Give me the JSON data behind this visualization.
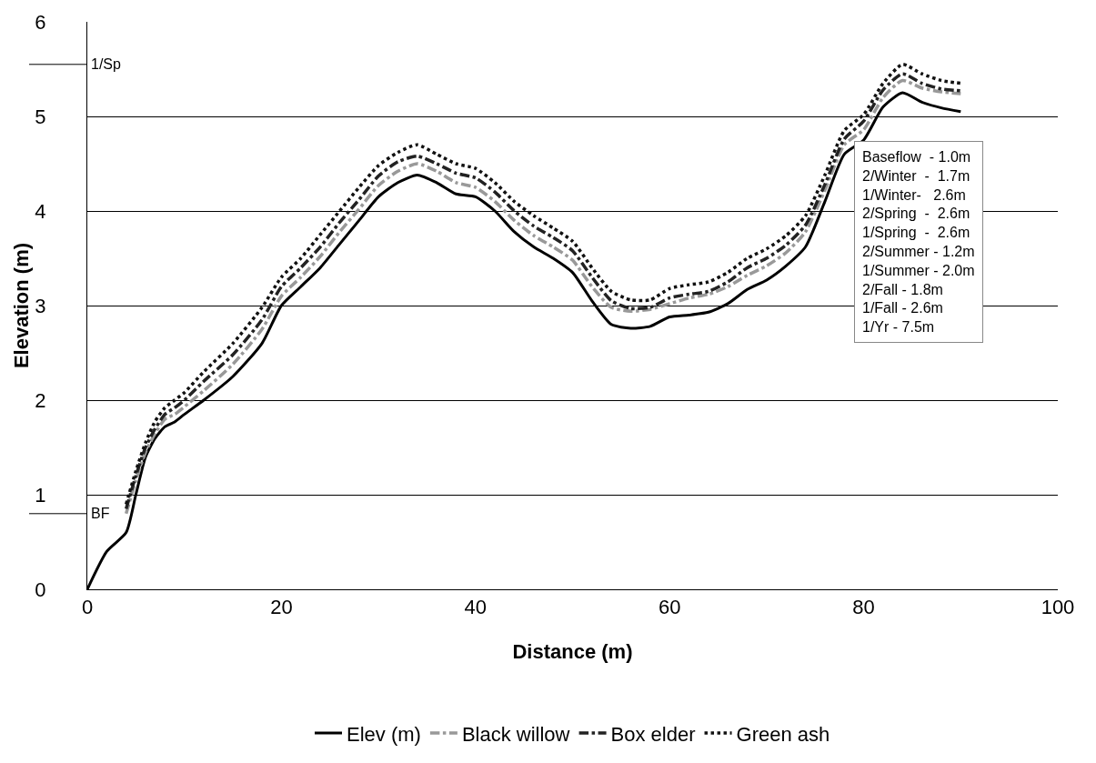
{
  "chart_data": {
    "type": "line",
    "xlabel": "Distance (m)",
    "ylabel": "Elevation (m)",
    "xlim": [
      0,
      100
    ],
    "xticks": [
      0,
      20,
      40,
      60,
      80,
      100
    ],
    "ylim": [
      0,
      6
    ],
    "yticks": [
      0,
      1,
      2,
      3,
      4,
      5,
      6
    ],
    "grid": "y",
    "legend": "bottom",
    "marker": "none",
    "series": [
      {
        "name": "Elev (m)",
        "color": "#000000",
        "line_style": "solid",
        "x": [
          0,
          2,
          4,
          5,
          6,
          7,
          8,
          9,
          10,
          12,
          15,
          18,
          20,
          22,
          24,
          26,
          28,
          30,
          32,
          34,
          36,
          38,
          40,
          42,
          44,
          46,
          48,
          50,
          52,
          54,
          56,
          58,
          60,
          62,
          64,
          66,
          68,
          70,
          72,
          74,
          76,
          78,
          80,
          82,
          84,
          86,
          88,
          90
        ],
        "values": [
          0,
          0.4,
          0.6,
          1.0,
          1.4,
          1.6,
          1.72,
          1.77,
          1.85,
          2.0,
          2.25,
          2.6,
          3.0,
          3.2,
          3.4,
          3.65,
          3.9,
          4.15,
          4.3,
          4.38,
          4.3,
          4.18,
          4.15,
          4.0,
          3.78,
          3.62,
          3.5,
          3.35,
          3.05,
          2.8,
          2.76,
          2.78,
          2.88,
          2.9,
          2.93,
          3.02,
          3.17,
          3.27,
          3.42,
          3.62,
          4.1,
          4.6,
          4.75,
          5.1,
          5.25,
          5.15,
          5.09,
          5.05
        ]
      },
      {
        "name": "Black willow",
        "color": "#999999",
        "line_style": "dashed",
        "x": [
          4,
          5,
          6,
          7,
          8,
          9,
          10,
          12,
          15,
          18,
          20,
          22,
          24,
          26,
          28,
          30,
          32,
          34,
          36,
          38,
          40,
          42,
          44,
          46,
          48,
          50,
          52,
          54,
          56,
          58,
          60,
          62,
          64,
          66,
          68,
          70,
          72,
          74,
          76,
          78,
          80,
          82,
          84,
          86,
          88,
          90
        ],
        "values": [
          0.8,
          1.15,
          1.45,
          1.65,
          1.8,
          1.85,
          1.93,
          2.1,
          2.38,
          2.75,
          3.1,
          3.3,
          3.52,
          3.78,
          4.02,
          4.27,
          4.42,
          4.5,
          4.42,
          4.3,
          4.25,
          4.1,
          3.9,
          3.74,
          3.62,
          3.48,
          3.2,
          2.98,
          2.94,
          2.96,
          3.02,
          3.08,
          3.12,
          3.2,
          3.32,
          3.42,
          3.56,
          3.78,
          4.22,
          4.7,
          4.86,
          5.2,
          5.38,
          5.3,
          5.26,
          5.24
        ]
      },
      {
        "name": "Box elder",
        "color": "#222222",
        "line_style": "dashed",
        "x": [
          4,
          5,
          6,
          7,
          8,
          9,
          10,
          12,
          15,
          18,
          20,
          22,
          24,
          26,
          28,
          30,
          32,
          34,
          36,
          38,
          40,
          42,
          44,
          46,
          48,
          50,
          52,
          54,
          56,
          58,
          60,
          62,
          64,
          66,
          68,
          70,
          72,
          74,
          76,
          78,
          80,
          82,
          84,
          86,
          88,
          90
        ],
        "values": [
          0.85,
          1.2,
          1.5,
          1.7,
          1.85,
          1.92,
          2.0,
          2.2,
          2.48,
          2.85,
          3.2,
          3.4,
          3.62,
          3.88,
          4.12,
          4.37,
          4.52,
          4.58,
          4.5,
          4.4,
          4.35,
          4.2,
          4.0,
          3.84,
          3.72,
          3.58,
          3.3,
          3.05,
          2.97,
          2.98,
          3.08,
          3.12,
          3.15,
          3.25,
          3.4,
          3.5,
          3.64,
          3.85,
          4.28,
          4.76,
          4.95,
          5.28,
          5.45,
          5.35,
          5.29,
          5.27
        ]
      },
      {
        "name": "Green ash",
        "color": "#111111",
        "line_style": "dotted",
        "x": [
          4,
          5,
          6,
          7,
          8,
          9,
          10,
          12,
          15,
          18,
          20,
          22,
          24,
          26,
          28,
          30,
          32,
          34,
          36,
          38,
          40,
          42,
          44,
          46,
          48,
          50,
          52,
          54,
          56,
          58,
          60,
          62,
          64,
          66,
          68,
          70,
          72,
          74,
          76,
          78,
          80,
          82,
          84,
          86,
          88,
          90
        ],
        "values": [
          0.9,
          1.25,
          1.55,
          1.78,
          1.92,
          2.0,
          2.08,
          2.3,
          2.6,
          2.98,
          3.3,
          3.5,
          3.75,
          4.0,
          4.25,
          4.48,
          4.62,
          4.7,
          4.6,
          4.5,
          4.45,
          4.3,
          4.1,
          3.95,
          3.82,
          3.68,
          3.4,
          3.15,
          3.06,
          3.06,
          3.18,
          3.22,
          3.25,
          3.35,
          3.5,
          3.6,
          3.74,
          3.95,
          4.38,
          4.85,
          5.02,
          5.35,
          5.55,
          5.45,
          5.38,
          5.35
        ]
      }
    ],
    "ref_lines": [
      {
        "axis": "y",
        "value": 5.55,
        "label": "1/Sp"
      },
      {
        "axis": "y",
        "value": 0.8,
        "label": "BF"
      }
    ],
    "annotations": [
      "Baseflow  - 1.0m",
      "2/Winter  -  1.7m",
      "1/Winter-   2.6m",
      "2/Spring  -  2.6m",
      "1/Spring  -  2.6m",
      "2/Summer - 1.2m",
      "1/Summer - 2.0m",
      "2/Fall - 1.8m",
      "1/Fall - 2.6m",
      "1/Yr - 7.5m"
    ]
  }
}
